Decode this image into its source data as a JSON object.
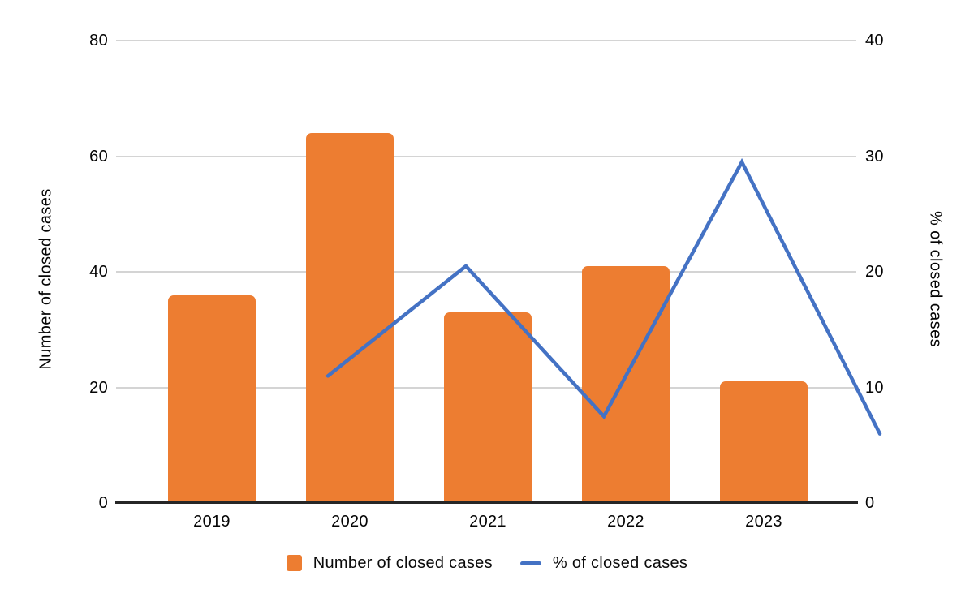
{
  "chart_data": {
    "type": "combo-bar-line",
    "categories": [
      "2019",
      "2020",
      "2021",
      "2022",
      "2023"
    ],
    "series": [
      {
        "name": "Number of closed cases",
        "type": "bar",
        "axis": "left",
        "values": [
          36,
          64,
          33,
          41,
          21
        ],
        "color": "#ED7D31"
      },
      {
        "name": "% of closed cases",
        "type": "line",
        "axis": "right",
        "values": [
          14.5,
          24,
          11,
          33,
          9.5
        ],
        "color": "#4472C4"
      }
    ],
    "left_axis": {
      "title": "Number of closed cases",
      "min": 0,
      "max": 80,
      "ticks": [
        80,
        60,
        40,
        20,
        0
      ]
    },
    "right_axis": {
      "title": "% of closed cases",
      "min": 0,
      "max": 40,
      "ticks": [
        40,
        30,
        20,
        10,
        0
      ]
    },
    "grid": true,
    "legend_position": "bottom"
  },
  "legend": {
    "items": [
      {
        "label": "Number of closed cases",
        "marker": "square",
        "color": "#ED7D31"
      },
      {
        "label": "% of closed cases",
        "marker": "line",
        "color": "#4472C4"
      }
    ]
  },
  "colors": {
    "bar": "#ED7D31",
    "line": "#4472C4",
    "gridline": "#d4d4d4",
    "axis_line": "#262626",
    "text": "#050505"
  }
}
